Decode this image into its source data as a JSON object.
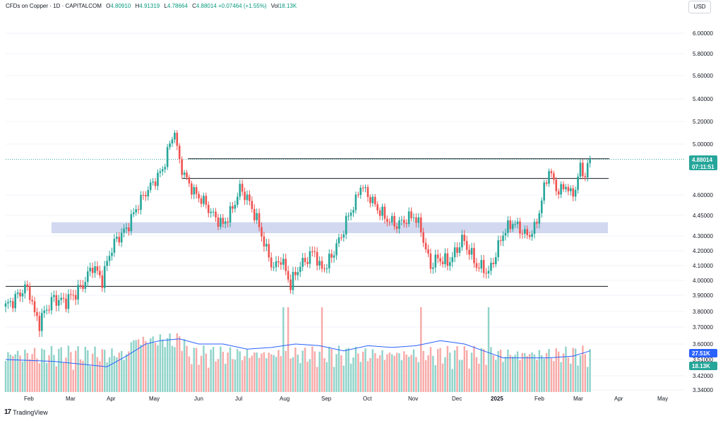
{
  "legend": {
    "symbol": "CFDs on Copper · 1D · CAPITALCOM",
    "open_label": "O",
    "open": "4.80910",
    "high_label": "H",
    "high": "4.91319",
    "low_label": "L",
    "low": "4.78664",
    "close_label": "C",
    "close": "4.88014",
    "change": "+0.07464 (+1.55%)",
    "vol_label": "Vol",
    "vol": "18.13K"
  },
  "currency_button": "USD",
  "brand": "TradingView",
  "colors": {
    "up": "#26a69a",
    "down": "#ef5350",
    "vol_up": "#8fd3c9",
    "vol_down": "#f7a9a7",
    "ma": "#2962ff",
    "zone": "#b8c3e8",
    "line": "#131722"
  },
  "chart_data": {
    "type": "candlestick",
    "title": "CFDs on Copper",
    "timeframe": "1D",
    "x_tick_labels": [
      "Feb",
      "Mar",
      "Apr",
      "May",
      "Jun",
      "Jul",
      "Aug",
      "Sep",
      "Oct",
      "Nov",
      "Dec",
      "2025",
      "Feb",
      "Mar",
      "Apr",
      "May"
    ],
    "y_tick_labels": [
      "6.00000",
      "5.80000",
      "5.60000",
      "5.40000",
      "5.20000",
      "5.00000",
      "4.60000",
      "4.45000",
      "4.30000",
      "4.20000",
      "4.10000",
      "4.00000",
      "3.90000",
      "3.80000",
      "3.70000",
      "3.60000",
      "3.51000",
      "3.42000",
      "3.34000"
    ],
    "price_ticks": [
      {
        "label": "6.00000",
        "v": 6.0
      },
      {
        "label": "5.80000",
        "v": 5.8
      },
      {
        "label": "5.60000",
        "v": 5.6
      },
      {
        "label": "5.40000",
        "v": 5.4
      },
      {
        "label": "5.20000",
        "v": 5.2
      },
      {
        "label": "5.00000",
        "v": 5.0
      },
      {
        "label": "4.60000",
        "v": 4.6
      },
      {
        "label": "4.45000",
        "v": 4.45
      },
      {
        "label": "4.30000",
        "v": 4.3
      },
      {
        "label": "4.20000",
        "v": 4.2
      },
      {
        "label": "4.10000",
        "v": 4.1
      },
      {
        "label": "4.00000",
        "v": 4.0
      },
      {
        "label": "3.90000",
        "v": 3.9
      },
      {
        "label": "3.80000",
        "v": 3.8
      },
      {
        "label": "3.70000",
        "v": 3.7
      },
      {
        "label": "3.60000",
        "v": 3.6
      },
      {
        "label": "3.51000",
        "v": 3.51
      },
      {
        "label": "3.42000",
        "v": 3.42
      },
      {
        "label": "3.34000",
        "v": 3.34
      }
    ],
    "last_price": "4.88014",
    "countdown": "07:11:51",
    "volume_ma_value": "27.51K",
    "volume_value": "18.13K",
    "horizontal_lines": [
      4.885,
      4.73,
      3.96
    ],
    "support_zone": [
      4.32,
      4.4
    ],
    "price_path": [
      [
        0,
        3.83
      ],
      [
        4,
        3.88
      ],
      [
        8,
        3.95
      ],
      [
        10,
        3.92
      ],
      [
        12,
        3.78
      ],
      [
        14,
        3.73
      ],
      [
        17,
        3.82
      ],
      [
        20,
        3.88
      ],
      [
        24,
        3.86
      ],
      [
        28,
        3.9
      ],
      [
        32,
        3.97
      ],
      [
        36,
        4.1
      ],
      [
        38,
        4.05
      ],
      [
        40,
        4.0
      ],
      [
        43,
        4.18
      ],
      [
        46,
        4.28
      ],
      [
        50,
        4.35
      ],
      [
        54,
        4.5
      ],
      [
        58,
        4.62
      ],
      [
        62,
        4.72
      ],
      [
        65,
        4.8
      ],
      [
        68,
        5.0
      ],
      [
        70,
        5.12
      ],
      [
        71,
        4.95
      ],
      [
        73,
        4.8
      ],
      [
        75,
        4.72
      ],
      [
        78,
        4.62
      ],
      [
        82,
        4.55
      ],
      [
        86,
        4.45
      ],
      [
        90,
        4.38
      ],
      [
        94,
        4.5
      ],
      [
        97,
        4.65
      ],
      [
        100,
        4.58
      ],
      [
        104,
        4.42
      ],
      [
        108,
        4.2
      ],
      [
        111,
        4.08
      ],
      [
        114,
        4.15
      ],
      [
        116,
        4.06
      ],
      [
        118,
        3.97
      ],
      [
        121,
        4.08
      ],
      [
        125,
        4.15
      ],
      [
        128,
        4.2
      ],
      [
        130,
        4.08
      ],
      [
        133,
        4.1
      ],
      [
        136,
        4.2
      ],
      [
        139,
        4.3
      ],
      [
        142,
        4.45
      ],
      [
        145,
        4.55
      ],
      [
        147,
        4.68
      ],
      [
        150,
        4.6
      ],
      [
        154,
        4.5
      ],
      [
        158,
        4.42
      ],
      [
        162,
        4.38
      ],
      [
        166,
        4.42
      ],
      [
        169,
        4.45
      ],
      [
        172,
        4.35
      ],
      [
        174,
        4.2
      ],
      [
        176,
        4.1
      ],
      [
        179,
        4.15
      ],
      [
        183,
        4.12
      ],
      [
        186,
        4.18
      ],
      [
        189,
        4.28
      ],
      [
        192,
        4.2
      ],
      [
        195,
        4.1
      ],
      [
        198,
        4.08
      ],
      [
        200,
        4.05
      ],
      [
        203,
        4.18
      ],
      [
        206,
        4.32
      ],
      [
        210,
        4.4
      ],
      [
        213,
        4.35
      ],
      [
        216,
        4.3
      ],
      [
        219,
        4.35
      ],
      [
        221,
        4.48
      ],
      [
        223,
        4.65
      ],
      [
        225,
        4.8
      ],
      [
        227,
        4.7
      ],
      [
        229,
        4.62
      ],
      [
        232,
        4.68
      ],
      [
        234,
        4.6
      ],
      [
        236,
        4.65
      ],
      [
        238,
        4.82
      ],
      [
        240,
        4.75
      ],
      [
        242,
        4.88
      ]
    ],
    "volume_ma_path": [
      [
        0,
        3.51
      ],
      [
        20,
        3.5
      ],
      [
        35,
        3.48
      ],
      [
        42,
        3.47
      ],
      [
        50,
        3.53
      ],
      [
        58,
        3.6
      ],
      [
        64,
        3.62
      ],
      [
        72,
        3.63
      ],
      [
        80,
        3.6
      ],
      [
        90,
        3.6
      ],
      [
        100,
        3.57
      ],
      [
        110,
        3.58
      ],
      [
        120,
        3.6
      ],
      [
        130,
        3.59
      ],
      [
        140,
        3.56
      ],
      [
        150,
        3.59
      ],
      [
        160,
        3.58
      ],
      [
        170,
        3.59
      ],
      [
        180,
        3.62
      ],
      [
        190,
        3.6
      ],
      [
        200,
        3.55
      ],
      [
        206,
        3.52
      ],
      [
        215,
        3.52
      ],
      [
        225,
        3.52
      ],
      [
        235,
        3.53
      ],
      [
        242,
        3.56
      ]
    ]
  }
}
